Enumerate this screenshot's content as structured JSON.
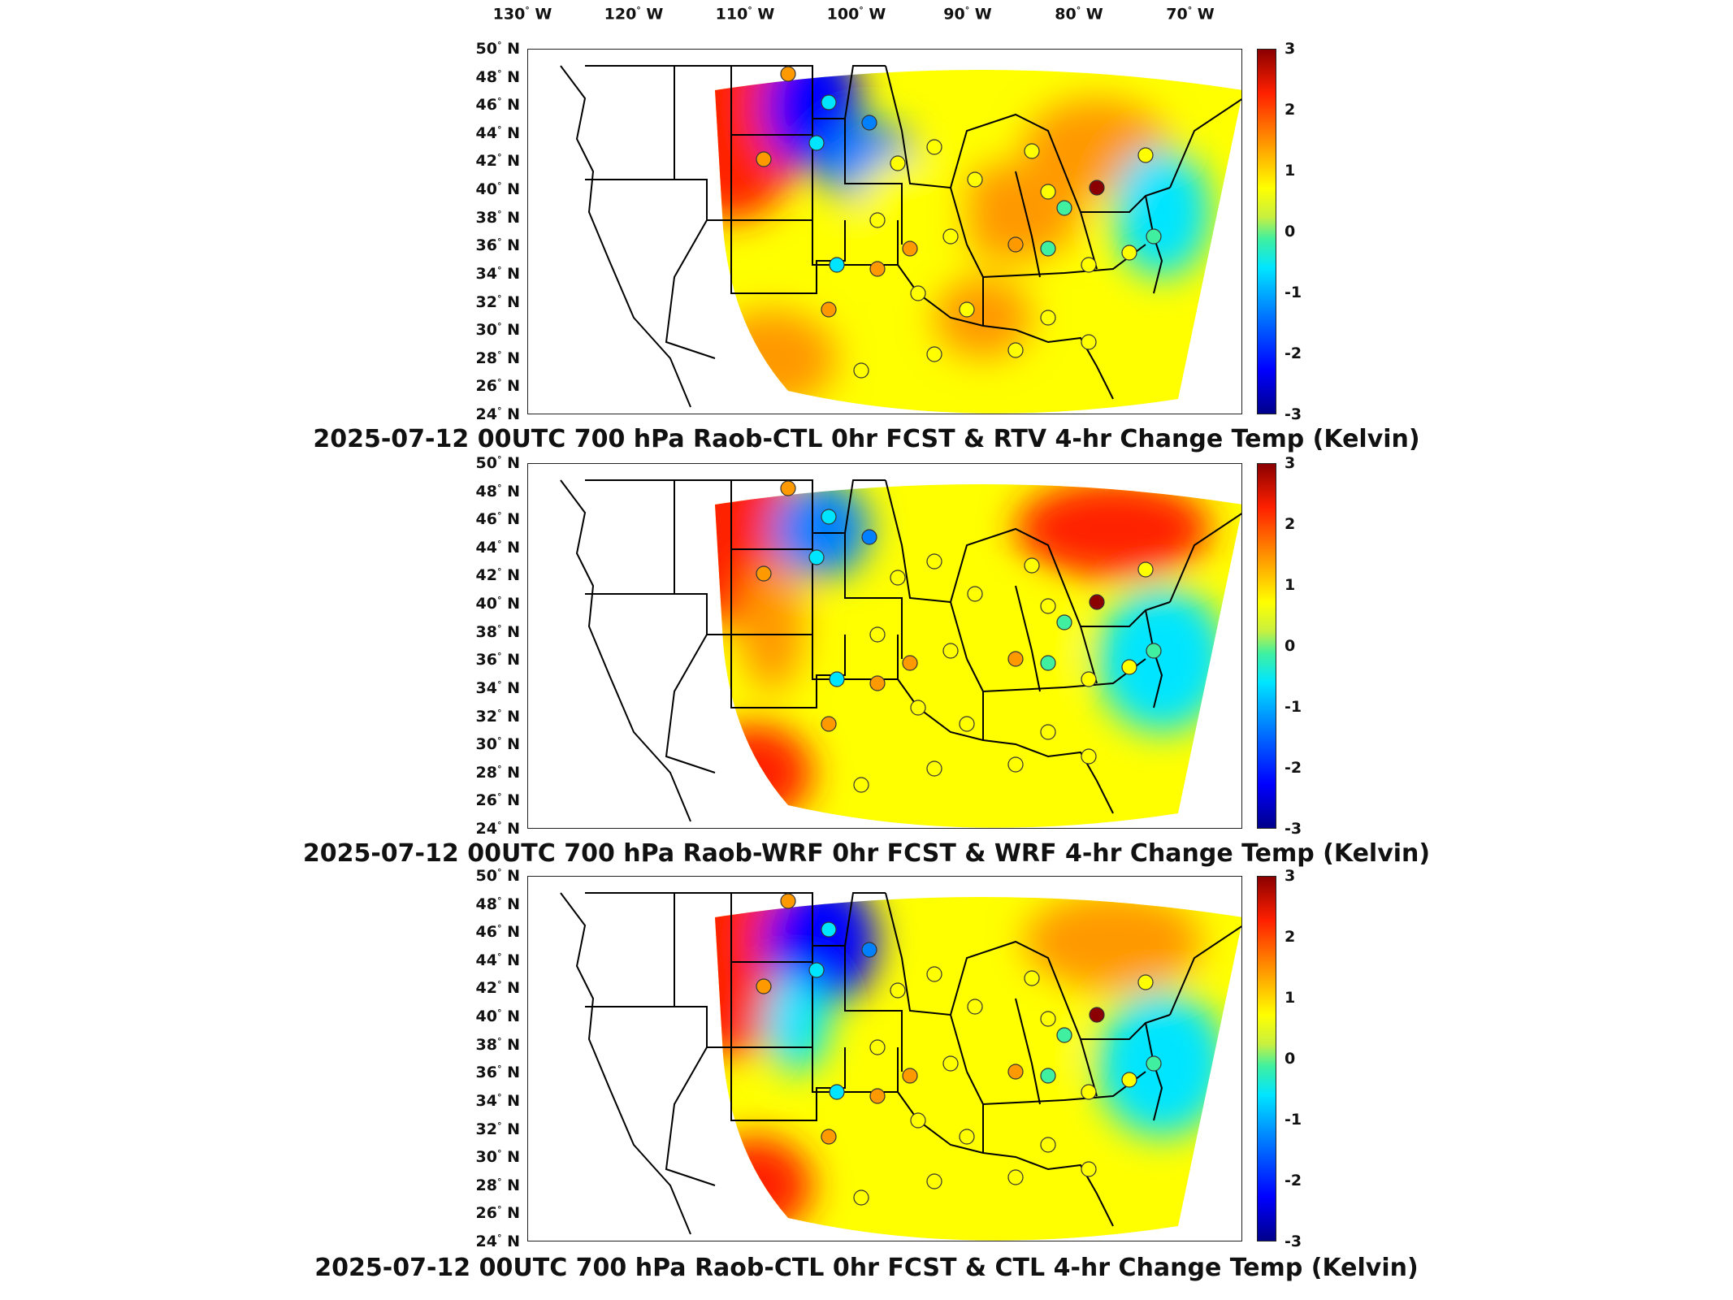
{
  "longitude_labels": [
    {
      "deg": "130",
      "hemi": "W"
    },
    {
      "deg": "120",
      "hemi": "W"
    },
    {
      "deg": "110",
      "hemi": "W"
    },
    {
      "deg": "100",
      "hemi": "W"
    },
    {
      "deg": "90",
      "hemi": "W"
    },
    {
      "deg": "80",
      "hemi": "W"
    },
    {
      "deg": "70",
      "hemi": "W"
    }
  ],
  "latitude_labels": [
    "50",
    "48",
    "46",
    "44",
    "42",
    "40",
    "38",
    "36",
    "34",
    "32",
    "30",
    "28",
    "26",
    "24"
  ],
  "latitude_hemi": "N",
  "colorbar": {
    "ticks": [
      "3",
      "2",
      "1",
      "0",
      "-1",
      "-2",
      "-3"
    ],
    "range": [
      -3,
      3
    ],
    "colors": [
      "#00008b",
      "#0000ff",
      "#0080ff",
      "#00e5ff",
      "#40f0a0",
      "#ffff00",
      "#ff9900",
      "#ff2000",
      "#8b0000"
    ]
  },
  "panels": [
    {
      "title": "2025-07-12 00UTC 700 hPa Raob-CTL 0hr FCST & RTV 4-hr Change Temp (Kelvin)"
    },
    {
      "title": "2025-07-12 00UTC 700 hPa Raob-WRF 0hr FCST & WRF 4-hr Change Temp (Kelvin)"
    },
    {
      "title": "2025-07-12 00UTC 700 hPa Raob-CTL 0hr FCST & CTL 4-hr Change Temp (Kelvin)"
    }
  ]
}
